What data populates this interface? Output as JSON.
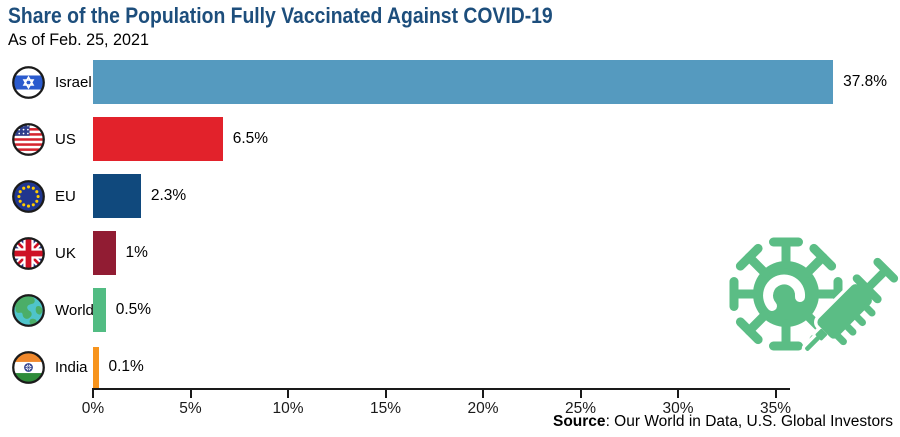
{
  "header": {
    "title": "Share of the Population Fully Vaccinated Against COVID-19",
    "subtitle": "As of Feb. 25, 2021"
  },
  "chart_data": {
    "type": "bar",
    "orientation": "horizontal",
    "title": "Share of the Population Fully Vaccinated Against COVID-19",
    "subtitle": "As of Feb. 25, 2021",
    "categories": [
      "Israel",
      "US",
      "EU",
      "UK",
      "World",
      "India"
    ],
    "values": [
      37.8,
      6.5,
      2.3,
      1,
      0.5,
      0.1
    ],
    "value_labels": [
      "37.8%",
      "6.5%",
      "2.3%",
      "1%",
      "0.5%",
      "0.1%"
    ],
    "bar_colors": [
      "#559ABF",
      "#E2222B",
      "#10497D",
      "#911C33",
      "#52BC83",
      "#F7941D"
    ],
    "flag_icons": [
      "israel-flag-icon",
      "us-flag-icon",
      "eu-flag-icon",
      "uk-flag-icon",
      "world-globe-icon",
      "india-flag-icon"
    ],
    "xlabel": "",
    "ylabel": "",
    "xlim": [
      0,
      35
    ],
    "x_ticks": [
      "0%",
      "5%",
      "10%",
      "15%",
      "20%",
      "25%",
      "30%",
      "35%"
    ],
    "x_tick_values": [
      0,
      5,
      10,
      15,
      20,
      25,
      30,
      35
    ],
    "grid": false,
    "legend": "none"
  },
  "footer": {
    "source_label": "Source",
    "source_text": ": Our World in Data, U.S. Global Investors"
  },
  "decoration": {
    "icon": "coronavirus-syringe-icon",
    "color": "#5BBD85"
  },
  "colors": {
    "title": "#1D4E7C",
    "axis": "#1a1a1a"
  }
}
